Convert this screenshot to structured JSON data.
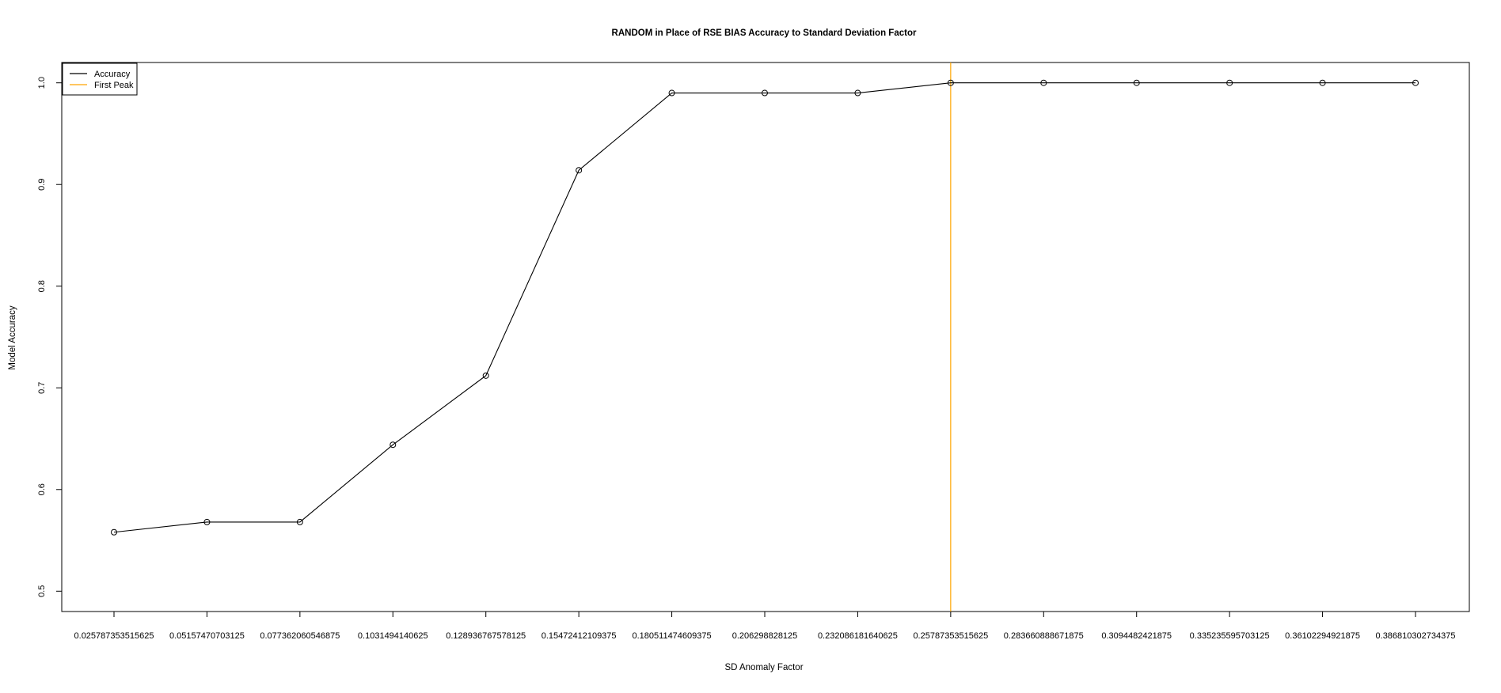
{
  "chart_data": {
    "type": "line",
    "title": "RANDOM in Place of RSE BIAS Accuracy to Standard Deviation Factor",
    "xlabel": "SD Anomaly Factor",
    "ylabel": "Model Accuracy",
    "x": [
      0.025787353515625,
      0.05157470703125,
      0.077362060546875,
      0.1031494140625,
      0.128936767578125,
      0.15472412109375,
      0.180511474609375,
      0.206298828125,
      0.232086181640625,
      0.25787353515625,
      0.283660888671875,
      0.3094482421875,
      0.335235595703125,
      0.36102294921875,
      0.386810302734375
    ],
    "x_tick_labels": [
      "0.025787353515625",
      "0.05157470703125",
      "0.077362060546875",
      "0.1031494140625",
      "0.128936767578125",
      "0.15472412109375",
      "0.180511474609375",
      "0.206298828125",
      "0.232086181640625",
      "0.25787353515625",
      "0.283660888671875",
      "0.3094482421875",
      "0.335235595703125",
      "0.36102294921875",
      "0.386810302734375"
    ],
    "series": [
      {
        "name": "Accuracy",
        "color": "#000000",
        "values": [
          0.558,
          0.568,
          0.568,
          0.644,
          0.712,
          0.914,
          0.99,
          0.99,
          0.99,
          1.0,
          1.0,
          1.0,
          1.0,
          1.0,
          1.0
        ]
      }
    ],
    "vline": {
      "name": "First Peak",
      "x": 0.25787353515625,
      "color": "#FFA500"
    },
    "ylim": [
      0.48,
      1.02
    ],
    "y_ticks": [
      0.5,
      0.6,
      0.7,
      0.8,
      0.9,
      1.0
    ],
    "y_tick_labels": [
      "0.5",
      "0.6",
      "0.7",
      "0.8",
      "0.9",
      "1.0"
    ],
    "legend": {
      "position": "top-left",
      "entries": [
        {
          "label": "Accuracy",
          "color": "#000000"
        },
        {
          "label": "First Peak",
          "color": "#FFA500"
        }
      ]
    },
    "grid": false
  }
}
